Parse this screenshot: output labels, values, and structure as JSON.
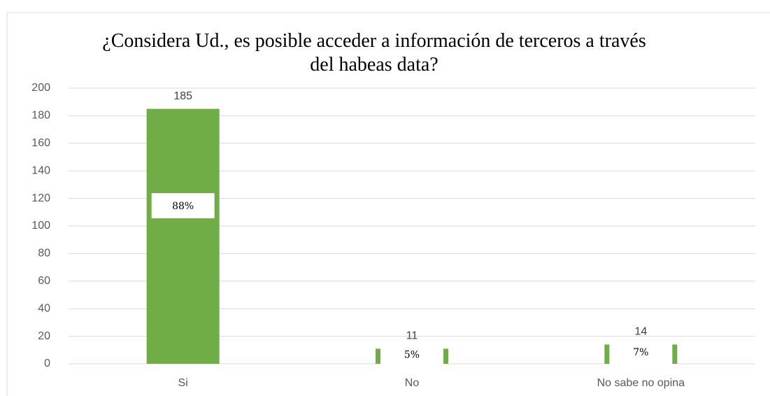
{
  "chart_data": {
    "type": "bar",
    "title": "¿Considera Ud., es posible acceder a información de terceros a través del habeas data?",
    "categories": [
      "Si",
      "No",
      "No sabe no opina"
    ],
    "values": [
      185,
      11,
      14
    ],
    "percentages": [
      88,
      5,
      7
    ],
    "percentage_labels": [
      "88%",
      "5%",
      "7%"
    ],
    "color": "#70ad47",
    "ylim": [
      0,
      200
    ],
    "yticks": [
      0,
      20,
      40,
      60,
      80,
      100,
      120,
      140,
      160,
      180,
      200
    ],
    "grid": true
  }
}
